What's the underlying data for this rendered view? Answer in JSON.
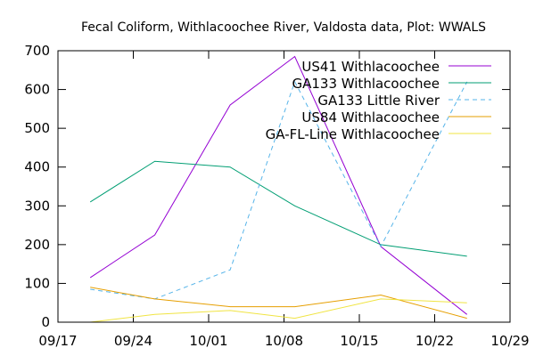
{
  "chart_data": {
    "type": "line",
    "title": "Fecal Coliform, Withlacoochee River, Valdosta data, Plot: WWALS",
    "xlabel": "",
    "ylabel": "",
    "x_ticks": [
      "09/17",
      "09/24",
      "10/01",
      "10/08",
      "10/15",
      "10/22",
      "10/29"
    ],
    "y_ticks": [
      "0",
      "100",
      "200",
      "300",
      "400",
      "500",
      "600",
      "700"
    ],
    "xlim": [
      "09/17",
      "10/29"
    ],
    "ylim": [
      0,
      700
    ],
    "grid": false,
    "legend_position": "top-right",
    "series": [
      {
        "name": "US41 Withlacoochee",
        "color": "#9400d3",
        "dash": "solid",
        "x": [
          "09/20",
          "09/26",
          "10/03",
          "10/09",
          "10/17",
          "10/25"
        ],
        "values": [
          115,
          225,
          560,
          685,
          195,
          20
        ]
      },
      {
        "name": "GA133 Withlacoochee",
        "color": "#009e73",
        "dash": "solid",
        "x": [
          "09/20",
          "09/26",
          "10/03",
          "10/09",
          "10/17",
          "10/25"
        ],
        "values": [
          310,
          415,
          400,
          300,
          200,
          170
        ]
      },
      {
        "name": "GA133 Little River",
        "color": "#56b4e9",
        "dash": "dashed",
        "x": [
          "09/20",
          "09/26",
          "10/03",
          "10/09",
          "10/17",
          "10/25"
        ],
        "values": [
          85,
          60,
          135,
          620,
          195,
          620
        ]
      },
      {
        "name": "US84 Withlacoochee",
        "color": "#e69f00",
        "dash": "solid",
        "x": [
          "09/20",
          "09/26",
          "10/03",
          "10/09",
          "10/17",
          "10/25"
        ],
        "values": [
          90,
          60,
          40,
          40,
          70,
          10
        ]
      },
      {
        "name": "GA-FL-Line Withlacoochee",
        "color": "#f0e442",
        "dash": "solid",
        "x": [
          "09/20",
          "09/26",
          "10/03",
          "10/09",
          "10/17",
          "10/25"
        ],
        "values": [
          0,
          20,
          30,
          10,
          60,
          50
        ]
      }
    ]
  }
}
